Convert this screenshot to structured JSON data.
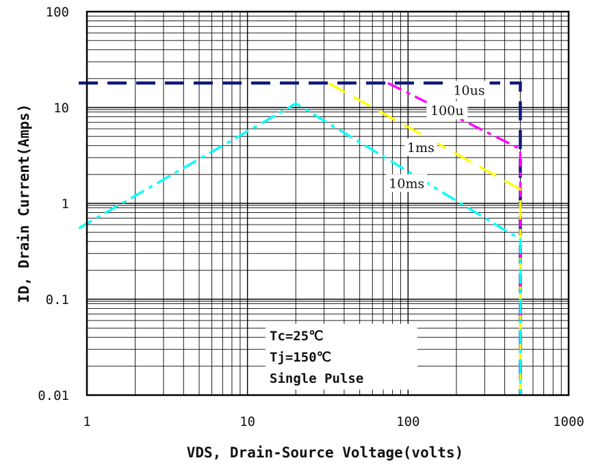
{
  "chart_data": {
    "type": "line",
    "x_scale": "log",
    "y_scale": "log",
    "xlim": [
      1,
      1000
    ],
    "ylim": [
      0.01,
      100
    ],
    "xlabel": "VDS, Drain-Source Voltage(volts)",
    "ylabel": "ID, Drain Current(Amps)",
    "x_ticks": [
      "1",
      "10",
      "100",
      "1000"
    ],
    "y_ticks": [
      "0.01",
      "0.1",
      "1",
      "10",
      "100"
    ],
    "grid": true,
    "series": [
      {
        "color": "#0d1a7a",
        "style": "dashed",
        "x": [
          1,
          500,
          500
        ],
        "y": [
          18,
          18,
          0.01
        ]
      },
      {
        "name": "10us",
        "color": "#ff00ff",
        "style": "dashdot",
        "x": [
          75,
          500,
          500
        ],
        "y": [
          18,
          3.7,
          0.01
        ]
      },
      {
        "name": "100u",
        "color": "#ffff00",
        "style": "dashed",
        "x": [
          32,
          500,
          500
        ],
        "y": [
          18,
          1.4,
          0.01
        ]
      },
      {
        "name": "1ms",
        "color": "#00ffff",
        "style": "dashdot",
        "x": [
          1,
          20,
          500,
          500
        ],
        "y": [
          0.55,
          11,
          0.42,
          0.01
        ]
      }
    ],
    "curve_labels": [
      {
        "text": "10us",
        "x": 240,
        "y": 15
      },
      {
        "text": "100u",
        "x": 175,
        "y": 9.2
      },
      {
        "text": "1ms",
        "x": 120,
        "y": 3.8
      },
      {
        "text": "10ms",
        "x": 98,
        "y": 1.6
      }
    ],
    "annotations": [
      "Tc=25℃",
      "Tj=150℃",
      "Single Pulse"
    ]
  }
}
